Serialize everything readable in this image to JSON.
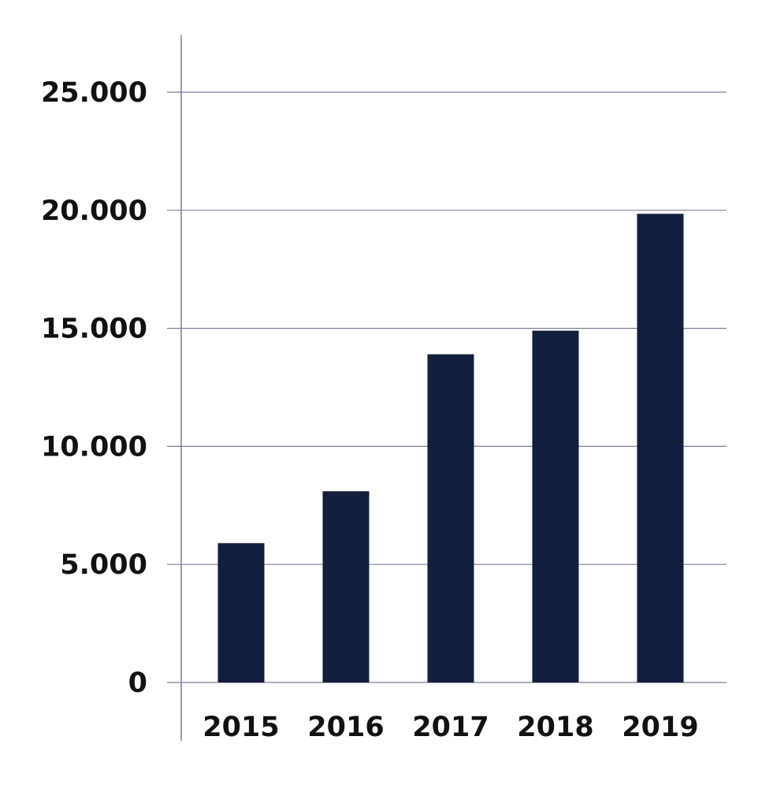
{
  "colors": {
    "bar": "#121e3b",
    "gridline": "#7b7e9c",
    "axis": "#7b7e9c",
    "text": "#111111",
    "background": "#ffffff"
  },
  "chart_data": {
    "type": "bar",
    "title": "",
    "xlabel": "",
    "ylabel": "",
    "categories": [
      "2015",
      "2016",
      "2017",
      "2018",
      "2019"
    ],
    "values": [
      5900,
      8100,
      13900,
      14900,
      19850
    ],
    "ylim": [
      0,
      25000
    ],
    "yticks": [
      0,
      5000,
      10000,
      15000,
      20000,
      25000
    ],
    "ytick_labels": [
      "0",
      "5.000",
      "10.000",
      "15.000",
      "20.000",
      "25.000"
    ],
    "grid": true,
    "legend": "none"
  }
}
